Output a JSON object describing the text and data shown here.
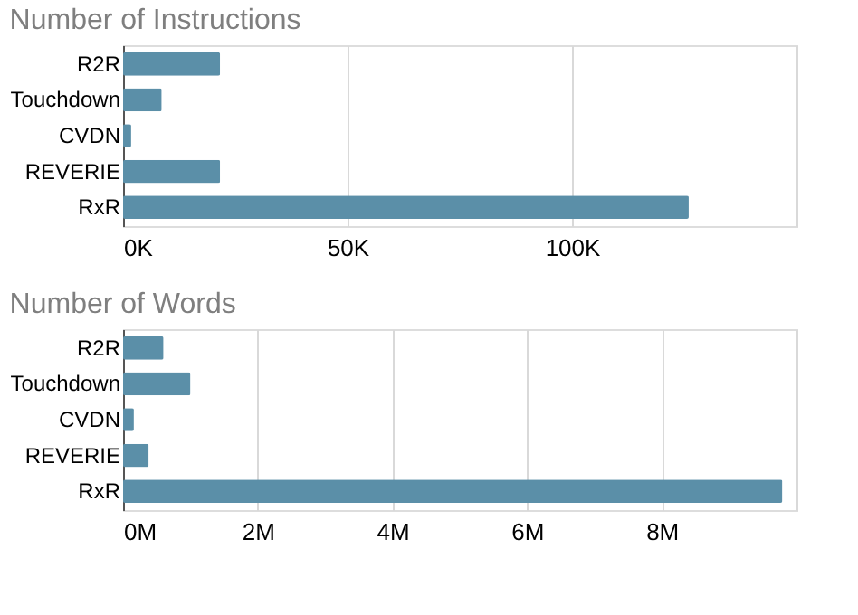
{
  "chart_data": [
    {
      "type": "bar",
      "orientation": "horizontal",
      "title": "Number of Instructions",
      "categories": [
        "R2R",
        "Touchdown",
        "CVDN",
        "REVERIE",
        "RxR"
      ],
      "values": [
        21600,
        8600,
        1800,
        21600,
        126000
      ],
      "color": "#5b8fa8",
      "xlim": [
        0,
        150000
      ],
      "xticks": [
        {
          "value": 0,
          "label": "0K"
        },
        {
          "value": 50000,
          "label": "50K"
        },
        {
          "value": 100000,
          "label": "100K"
        },
        {
          "value": 150000,
          "label": null
        }
      ],
      "grid": "x"
    },
    {
      "type": "bar",
      "orientation": "horizontal",
      "title": "Number of Words",
      "categories": [
        "R2R",
        "Touchdown",
        "CVDN",
        "REVERIE",
        "RxR"
      ],
      "values": [
        600000,
        1000000,
        160000,
        380000,
        9790000
      ],
      "color": "#5b8fa8",
      "xlim": [
        0,
        10000000
      ],
      "xticks": [
        {
          "value": 0,
          "label": "0M"
        },
        {
          "value": 2000000,
          "label": "2M"
        },
        {
          "value": 4000000,
          "label": "4M"
        },
        {
          "value": 6000000,
          "label": "6M"
        },
        {
          "value": 8000000,
          "label": "8M"
        },
        {
          "value": 10000000,
          "label": null
        }
      ],
      "grid": "x"
    }
  ]
}
